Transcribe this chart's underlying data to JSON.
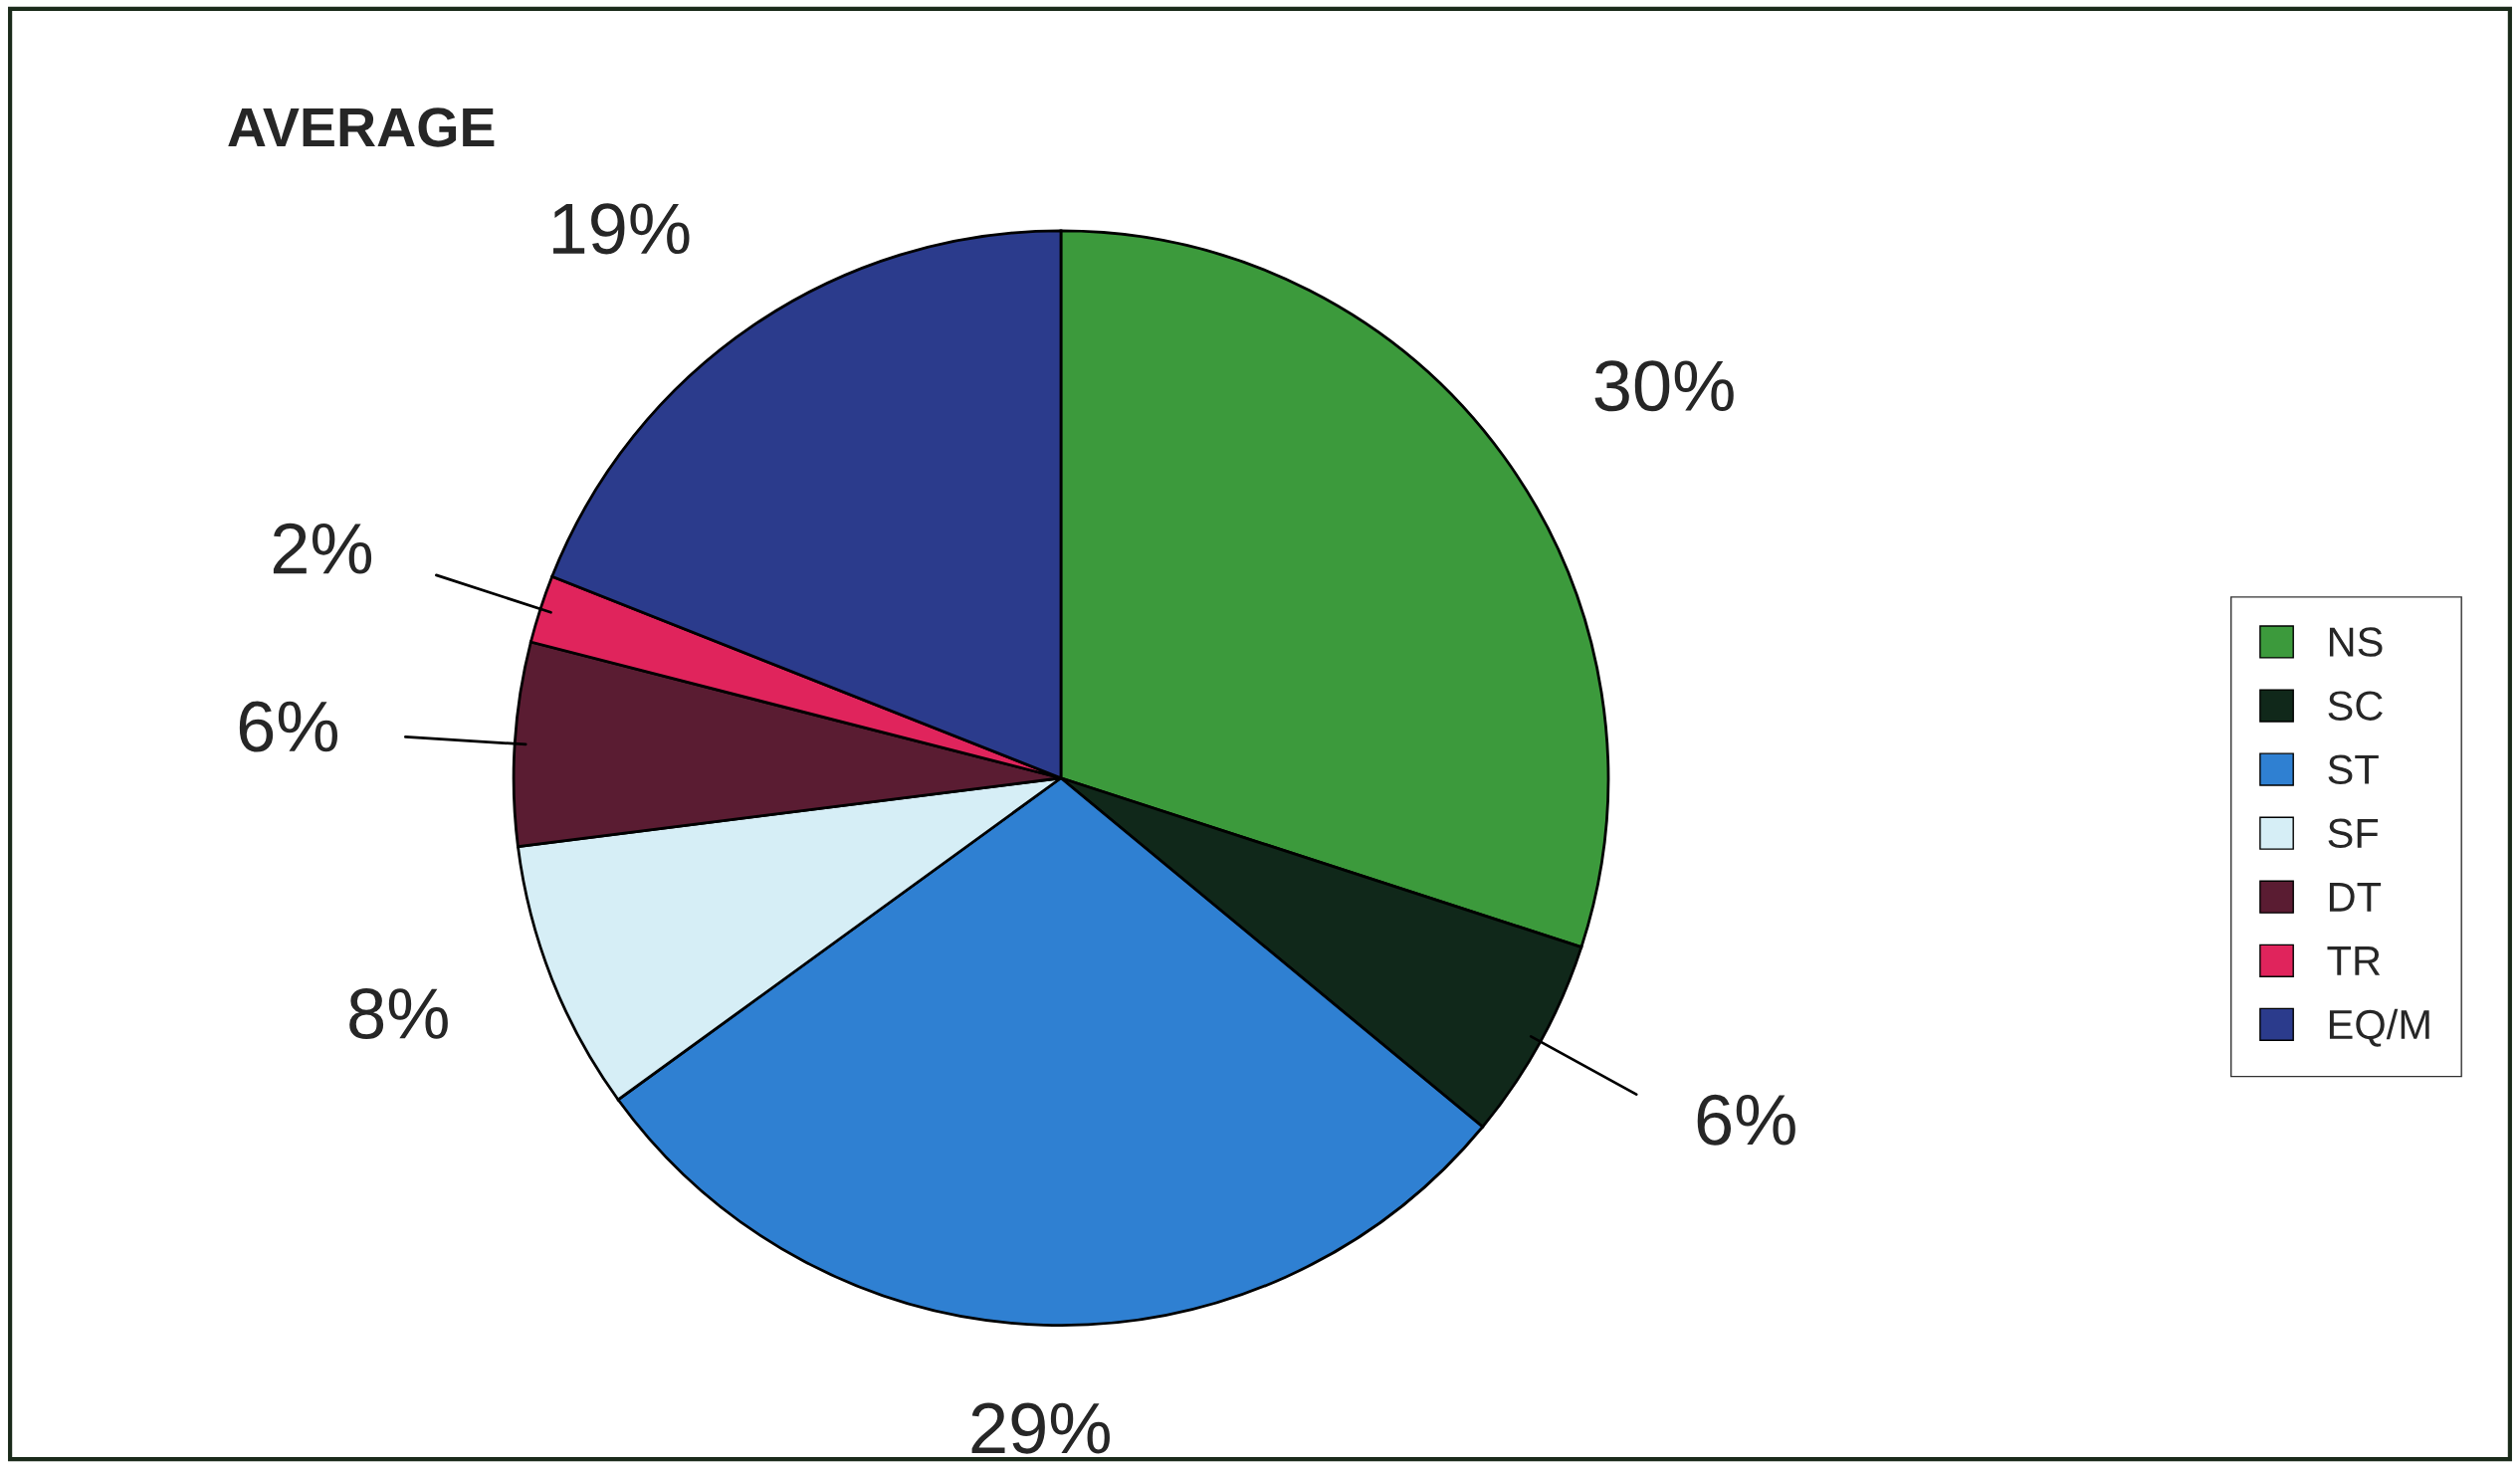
{
  "chart_data": {
    "type": "pie",
    "title": "AVERAGE",
    "categories": [
      "NS",
      "SC",
      "ST",
      "SF",
      "DT",
      "TR",
      "EQ/M"
    ],
    "values": [
      30,
      6,
      29,
      8,
      6,
      2,
      19
    ],
    "colors": [
      "#3c9a3c",
      "#10281a",
      "#2f80d2",
      "#d6eef6",
      "#5a1c32",
      "#e0245c",
      "#2b3b8c"
    ],
    "value_labels": [
      "30%",
      "6%",
      "29%",
      "8%",
      "6%",
      "2%",
      "19%"
    ],
    "legend": "right"
  }
}
